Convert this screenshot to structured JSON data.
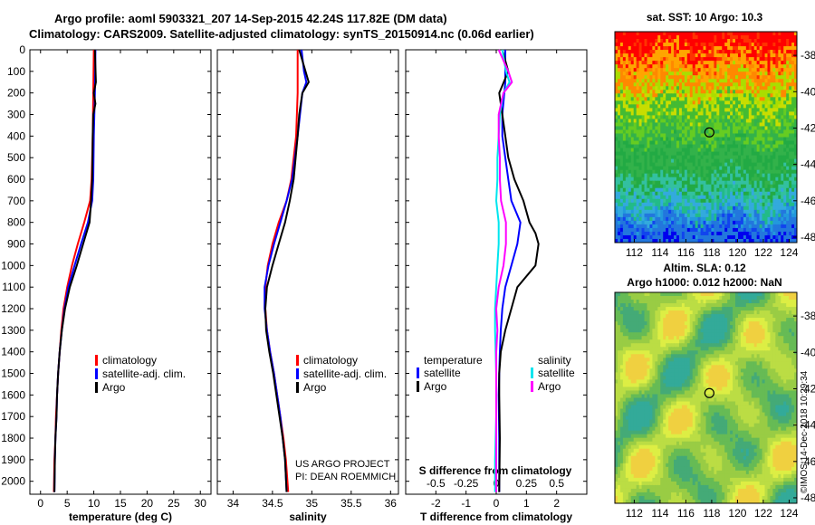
{
  "header": {
    "line1": "Argo profile: aoml 5903321_207 14-Sep-2015 42.24S 117.82E (DM data)",
    "line2": "Climatology: CARS2009. Satellite-adjusted climatology: synTS_20150914.nc (0.06d earlier)"
  },
  "credits": {
    "line1": "US ARGO PROJECT",
    "line2": "PI: DEAN ROEMMICH"
  },
  "watermark": "©IMOS 14-Dec-2018 10:29:34",
  "colors": {
    "climatology": "#ff0000",
    "satellite": "#0000ff",
    "argo": "#000000",
    "sat_salinity": "#00e5ee",
    "clim_salinity_diff": "#ff00ff"
  },
  "chart_data": [
    {
      "type": "line",
      "id": "temperature",
      "xlabel": "temperature (deg C)",
      "ylabel": "",
      "xlim": [
        -2,
        32
      ],
      "ylim": [
        2060,
        0
      ],
      "xticks": [
        0,
        5,
        10,
        15,
        20,
        25,
        30
      ],
      "yticks": [
        0,
        100,
        200,
        300,
        400,
        500,
        600,
        700,
        800,
        900,
        1000,
        1100,
        1200,
        1300,
        1400,
        1500,
        1600,
        1700,
        1800,
        1900,
        2000
      ],
      "legend": [
        "climatology",
        "satellite-adj. clim.",
        "Argo"
      ],
      "series": [
        {
          "name": "climatology",
          "color": "#ff0000",
          "depth": [
            0,
            200,
            400,
            600,
            700,
            800,
            900,
            1000,
            1100,
            1200,
            1300,
            1400,
            1500,
            1600,
            1700,
            1800,
            1900,
            2050
          ],
          "values": [
            10.0,
            9.9,
            9.8,
            9.6,
            9.3,
            8.2,
            7.0,
            5.9,
            5.0,
            4.3,
            3.9,
            3.6,
            3.3,
            3.1,
            2.9,
            2.8,
            2.6,
            2.5
          ]
        },
        {
          "name": "satellite-adj. clim.",
          "color": "#0000ff",
          "depth": [
            0,
            200,
            400,
            600,
            700,
            800,
            900,
            1000,
            1100,
            1200,
            1300,
            1400,
            1500,
            1600,
            1700,
            1800,
            1900,
            2050
          ],
          "values": [
            10.3,
            10.2,
            10.0,
            9.9,
            9.7,
            8.9,
            7.6,
            6.4,
            5.2,
            4.5,
            4.0,
            3.6,
            3.3,
            3.1,
            3.0,
            2.8,
            2.7,
            2.6
          ]
        },
        {
          "name": "Argo",
          "color": "#000000",
          "depth": [
            0,
            150,
            200,
            250,
            300,
            400,
            600,
            700,
            800,
            900,
            1000,
            1100,
            1200,
            1300,
            1400,
            1500,
            1600,
            1700,
            1800,
            1900,
            2050
          ],
          "values": [
            10.2,
            10.4,
            10.0,
            10.3,
            9.9,
            9.8,
            9.7,
            9.5,
            9.2,
            8.0,
            6.8,
            5.5,
            4.6,
            4.0,
            3.6,
            3.3,
            3.1,
            3.0,
            2.8,
            2.7,
            2.6
          ]
        }
      ]
    },
    {
      "type": "line",
      "id": "salinity",
      "xlabel": "salinity",
      "ylabel": "",
      "xlim": [
        33.8,
        36.1
      ],
      "ylim": [
        2060,
        0
      ],
      "xticks": [
        34,
        34.5,
        35,
        35.5,
        36
      ],
      "legend": [
        "climatology",
        "satellite-adj. clim.",
        "Argo"
      ],
      "series": [
        {
          "name": "climatology",
          "color": "#ff0000",
          "depth": [
            0,
            200,
            400,
            600,
            700,
            800,
            900,
            1000,
            1100,
            1200,
            1300,
            1400,
            1500,
            1600,
            1700,
            1800,
            1900,
            2050
          ],
          "values": [
            34.82,
            34.82,
            34.8,
            34.74,
            34.68,
            34.58,
            34.5,
            34.44,
            34.41,
            34.41,
            34.43,
            34.47,
            34.52,
            34.56,
            34.6,
            34.64,
            34.67,
            34.7
          ]
        },
        {
          "name": "satellite-adj. clim.",
          "color": "#0000ff",
          "depth": [
            0,
            100,
            150,
            200,
            300,
            400,
            600,
            700,
            800,
            900,
            1000,
            1100,
            1200,
            1300,
            1400,
            1500,
            1600,
            1700,
            1800,
            1900,
            2050
          ],
          "values": [
            34.87,
            34.9,
            34.93,
            34.88,
            34.85,
            34.82,
            34.75,
            34.68,
            34.6,
            34.52,
            34.45,
            34.4,
            34.4,
            34.43,
            34.47,
            34.52,
            34.56,
            34.6,
            34.63,
            34.66,
            34.68
          ]
        },
        {
          "name": "Argo",
          "color": "#000000",
          "depth": [
            0,
            100,
            150,
            200,
            300,
            400,
            600,
            700,
            800,
            900,
            1000,
            1100,
            1200,
            1300,
            1400,
            1500,
            1600,
            1700,
            1800,
            1900,
            2050
          ],
          "values": [
            34.84,
            34.92,
            34.96,
            34.88,
            34.84,
            34.82,
            34.77,
            34.72,
            34.66,
            34.58,
            34.5,
            34.43,
            34.41,
            34.42,
            34.46,
            34.51,
            34.55,
            34.59,
            34.63,
            34.66,
            34.68
          ]
        }
      ]
    },
    {
      "type": "line",
      "id": "difference",
      "xlabel": "T difference from climatology",
      "xlabel_top": "S difference from climatology",
      "xlim": [
        -3,
        3
      ],
      "ylim": [
        2060,
        0
      ],
      "xticks": [
        -2,
        -1,
        0,
        1,
        2
      ],
      "xticks_top": [
        -0.5,
        -0.25,
        0,
        0.25,
        0.5
      ],
      "xticklabels_top": [
        "-0.5",
        "-0.25",
        "0",
        "0.25",
        "0.5"
      ],
      "legend_left_title": "temperature",
      "legend_left": [
        "satellite",
        "Argo"
      ],
      "legend_right_title": "salinity",
      "legend_right": [
        "satellite",
        "Argo"
      ],
      "series": [
        {
          "name": "temperature satellite",
          "color": "#0000ff",
          "depth": [
            0,
            150,
            300,
            400,
            500,
            600,
            700,
            800,
            900,
            1000,
            1100,
            1200,
            1300,
            1400,
            1500,
            1600,
            1800,
            2050
          ],
          "values": [
            0.3,
            0.3,
            0.2,
            0.2,
            0.3,
            0.4,
            0.5,
            0.8,
            0.7,
            0.5,
            0.3,
            0.2,
            0.15,
            0.12,
            0.1,
            0.08,
            0.1,
            0.1
          ]
        },
        {
          "name": "temperature Argo",
          "color": "#000000",
          "depth": [
            0,
            100,
            200,
            300,
            400,
            500,
            600,
            700,
            800,
            850,
            900,
            1000,
            1100,
            1200,
            1300,
            1400,
            1500,
            1600,
            1800,
            2050
          ],
          "values": [
            0.2,
            0.4,
            0.1,
            0.2,
            0.3,
            0.4,
            0.6,
            0.9,
            1.1,
            1.3,
            1.4,
            1.3,
            0.7,
            0.5,
            0.3,
            0.15,
            0.1,
            0.1,
            0.12,
            0.1
          ]
        },
        {
          "name": "salinity satellite",
          "color": "#00e5ee",
          "depth": [
            0,
            100,
            150,
            200,
            300,
            400,
            500,
            600,
            700,
            800,
            900,
            1000,
            1100,
            1200,
            1300,
            1500,
            1700,
            1900,
            2050
          ],
          "values": [
            0.05,
            0.08,
            0.11,
            0.06,
            0.03,
            0.02,
            0.01,
            0.01,
            0.0,
            0.02,
            0.02,
            0.01,
            0.0,
            -0.01,
            -0.01,
            0.0,
            0.0,
            -0.01,
            -0.01
          ]
        },
        {
          "name": "salinity Argo",
          "color": "#ff00ff",
          "depth": [
            0,
            100,
            150,
            200,
            300,
            400,
            500,
            600,
            700,
            800,
            900,
            1000,
            1100,
            1200,
            1300,
            1400,
            1500,
            1700,
            1900,
            2050
          ],
          "values": [
            0.02,
            0.1,
            0.13,
            0.06,
            0.02,
            0.02,
            0.03,
            0.03,
            0.04,
            0.08,
            0.08,
            0.06,
            0.02,
            0.0,
            0.01,
            0.0,
            0.0,
            0.0,
            0.0,
            0.0
          ]
        }
      ]
    },
    {
      "type": "heatmap",
      "id": "sst_map",
      "title": "sat. SST: 10 Argo: 10.3",
      "xlim": [
        110.5,
        124.6
      ],
      "ylim": [
        -48.3,
        -36.7
      ],
      "xticks": [
        112,
        114,
        116,
        118,
        120,
        122,
        124
      ],
      "yticks": [
        -38,
        -40,
        -42,
        -44,
        -46,
        -48
      ],
      "yticklabels": [
        "-38",
        "-40",
        "-42",
        "-44",
        "-46",
        "-48"
      ],
      "argo_position": {
        "lon": 117.82,
        "lat": -42.24
      }
    },
    {
      "type": "heatmap",
      "id": "sla_map",
      "title_line1": "Altim. SLA: 0.12",
      "title_line2": "Argo h1000: 0.012 h2000: NaN",
      "xlim": [
        110.5,
        124.6
      ],
      "ylim": [
        -48.3,
        -36.7
      ],
      "xticks": [
        112,
        114,
        116,
        118,
        120,
        122,
        124
      ],
      "yticks": [
        -38,
        -40,
        -42,
        -44,
        -46,
        -48
      ],
      "yticklabels": [
        "-38",
        "-40",
        "-42",
        "-44",
        "-46",
        "-48"
      ],
      "argo_position": {
        "lon": 117.82,
        "lat": -42.24
      }
    }
  ]
}
